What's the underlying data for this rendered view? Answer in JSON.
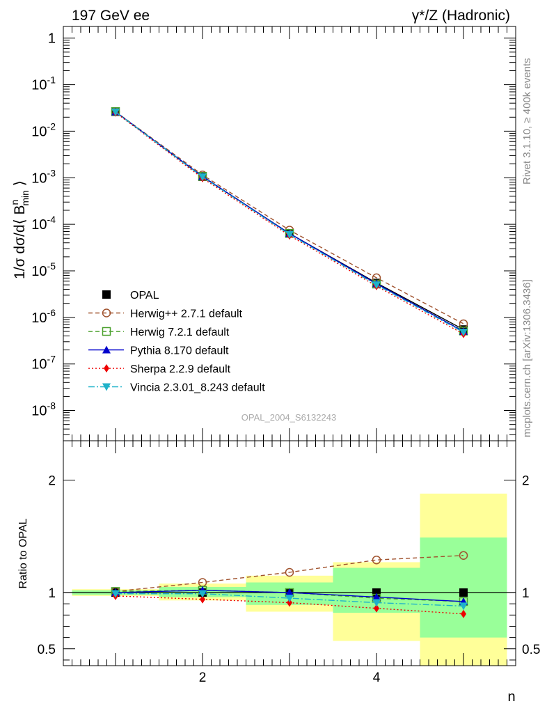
{
  "header": {
    "left_title": "197 GeV ee",
    "right_title": "γ*/Z (Hadronic)"
  },
  "side_labels": {
    "rivet": "Rivet 3.1.10, ≥ 400k events",
    "mcplots": "mcplots.cern.ch [arXiv:1306.3436]"
  },
  "watermark": "OPAL_2004_S6132243",
  "colors": {
    "data": "#000000",
    "herwigpp": "#a0522d",
    "herwig7": "#4aa02c",
    "pythia": "#0000cc",
    "sherpa": "#ee0000",
    "vincia": "#1fb2c9",
    "band_yellow": "#ffff99",
    "band_green": "#99ff99"
  },
  "chart_data": [
    {
      "type": "line",
      "scale": "log",
      "ylabel_parts": {
        "pre": "1/σ dσ/d⟨ B",
        "sup": "n",
        "sub": "min",
        "post": " ⟩"
      },
      "xlim": [
        0.4,
        5.6
      ],
      "ylim_log10": [
        -8.65,
        0.25
      ],
      "y_tick_labels": [
        {
          "exp": 0,
          "label": "1"
        },
        {
          "exp": -1,
          "base": "10",
          "sup": "-1"
        },
        {
          "exp": -2,
          "base": "10",
          "sup": "-2"
        },
        {
          "exp": -3,
          "base": "10",
          "sup": "-3"
        },
        {
          "exp": -4,
          "base": "10",
          "sup": "-4"
        },
        {
          "exp": -5,
          "base": "10",
          "sup": "-5"
        },
        {
          "exp": -6,
          "base": "10",
          "sup": "-6"
        },
        {
          "exp": -7,
          "base": "10",
          "sup": "-7"
        },
        {
          "exp": -8,
          "base": "10",
          "sup": "-8"
        }
      ],
      "x": [
        1,
        2,
        3,
        4,
        5
      ],
      "series": [
        {
          "key": "data",
          "name": "OPAL",
          "values": [
            0.026,
            0.00105,
            6.35e-05,
            5.5e-06,
            5.5e-07
          ]
        },
        {
          "key": "herwigpp",
          "name": "Herwig++ 2.7.1 default",
          "values": [
            0.0262,
            0.00115,
            7.5e-05,
            7.1e-06,
            7.3e-07
          ]
        },
        {
          "key": "herwig7",
          "name": "Herwig 7.2.1 default",
          "values": [
            0.0264,
            0.00107,
            6.37e-05,
            5.2e-06,
            5.1e-07
          ]
        },
        {
          "key": "pythia",
          "name": "Pythia 8.170 default",
          "values": [
            0.026,
            0.00107,
            6.33e-05,
            5.3e-06,
            5e-07
          ]
        },
        {
          "key": "sherpa",
          "name": "Sherpa 2.2.9 default",
          "values": [
            0.0252,
            0.00098,
            5.75e-05,
            4.7e-06,
            4.4e-07
          ]
        },
        {
          "key": "vincia",
          "name": "Vincia 2.3.01_8.243 default",
          "values": [
            0.0258,
            0.00104,
            6.05e-05,
            5e-06,
            4.8e-07
          ]
        }
      ]
    },
    {
      "type": "line",
      "ylabel": "Ratio to OPAL",
      "xlabel": "n",
      "xlim": [
        0.4,
        5.6
      ],
      "ylim": [
        0.35,
        2.35
      ],
      "x_tick_labels": [
        "2",
        "4"
      ],
      "y_tick_labels": [
        "0.5",
        "1",
        "2"
      ],
      "x": [
        1,
        2,
        3,
        4,
        5
      ],
      "bands": {
        "yellow": [
          [
            0.97,
            1.03
          ],
          [
            0.93,
            1.08
          ],
          [
            0.83,
            1.15
          ],
          [
            0.57,
            1.27
          ],
          [
            0.35,
            1.88
          ]
        ],
        "green": [
          [
            0.98,
            1.02
          ],
          [
            0.96,
            1.05
          ],
          [
            0.89,
            1.09
          ],
          [
            0.82,
            1.22
          ],
          [
            0.6,
            1.49
          ]
        ]
      },
      "series": [
        {
          "key": "herwigpp",
          "values": [
            1.01,
            1.09,
            1.18,
            1.29,
            1.33
          ]
        },
        {
          "key": "herwig7",
          "values": [
            1.01,
            1.02,
            1.0,
            0.95,
            0.92
          ]
        },
        {
          "key": "pythia",
          "values": [
            1.0,
            1.02,
            1.0,
            0.96,
            0.92
          ]
        },
        {
          "key": "sherpa",
          "values": [
            0.97,
            0.94,
            0.91,
            0.86,
            0.81
          ]
        },
        {
          "key": "vincia",
          "values": [
            0.99,
            0.99,
            0.95,
            0.91,
            0.88
          ]
        }
      ]
    }
  ]
}
